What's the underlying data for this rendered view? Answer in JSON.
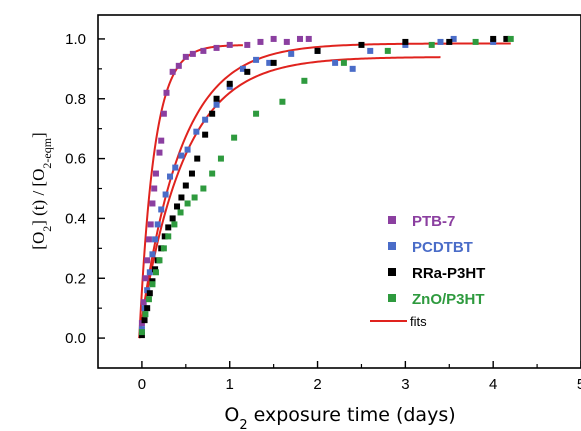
{
  "chart_data": {
    "type": "scatter",
    "xlabel": {
      "pre": "O",
      "sub": "2",
      "post": " exposure time (days)"
    },
    "ylabel": {
      "p1": "[O",
      "s1": "2",
      "p2": "] (t) / [O",
      "s2": "2-eqm",
      "p3": "]"
    },
    "xlim": [
      -0.5,
      5
    ],
    "ylim": [
      -0.1,
      1.08
    ],
    "xticks": [
      0,
      1,
      2,
      3,
      4,
      5
    ],
    "yticks": [
      0.0,
      0.2,
      0.4,
      0.6,
      0.8,
      1.0
    ],
    "xtick_labels": [
      "0",
      "1",
      "2",
      "3",
      "4",
      "5"
    ],
    "ytick_labels": [
      "0.0",
      "0.2",
      "0.4",
      "0.6",
      "0.8",
      "1.0"
    ],
    "grid": false,
    "legend_position": "center-right",
    "series": [
      {
        "name": "PTB-7",
        "color": "#8B3FA0",
        "points": [
          [
            0.0,
            0.05
          ],
          [
            0.02,
            0.12
          ],
          [
            0.04,
            0.2
          ],
          [
            0.06,
            0.26
          ],
          [
            0.08,
            0.33
          ],
          [
            0.1,
            0.38
          ],
          [
            0.12,
            0.45
          ],
          [
            0.14,
            0.5
          ],
          [
            0.16,
            0.55
          ],
          [
            0.2,
            0.62
          ],
          [
            0.22,
            0.66
          ],
          [
            0.25,
            0.75
          ],
          [
            0.28,
            0.82
          ],
          [
            0.35,
            0.89
          ],
          [
            0.42,
            0.91
          ],
          [
            0.5,
            0.94
          ],
          [
            0.58,
            0.95
          ],
          [
            0.7,
            0.96
          ],
          [
            0.85,
            0.97
          ],
          [
            1.0,
            0.98
          ],
          [
            1.2,
            0.98
          ],
          [
            1.35,
            0.99
          ],
          [
            1.5,
            1.0
          ],
          [
            1.65,
            0.99
          ],
          [
            1.8,
            1.0
          ],
          [
            1.9,
            1.0
          ]
        ]
      },
      {
        "name": "PCDTBT",
        "color": "#4A6CC8",
        "points": [
          [
            0.0,
            0.03
          ],
          [
            0.03,
            0.1
          ],
          [
            0.06,
            0.16
          ],
          [
            0.09,
            0.22
          ],
          [
            0.12,
            0.28
          ],
          [
            0.15,
            0.33
          ],
          [
            0.18,
            0.38
          ],
          [
            0.22,
            0.43
          ],
          [
            0.27,
            0.48
          ],
          [
            0.32,
            0.54
          ],
          [
            0.38,
            0.57
          ],
          [
            0.45,
            0.61
          ],
          [
            0.52,
            0.63
          ],
          [
            0.62,
            0.69
          ],
          [
            0.72,
            0.73
          ],
          [
            0.85,
            0.78
          ],
          [
            1.0,
            0.84
          ],
          [
            1.15,
            0.9
          ],
          [
            1.3,
            0.93
          ],
          [
            1.45,
            0.92
          ],
          [
            1.7,
            0.95
          ],
          [
            2.0,
            0.96
          ],
          [
            2.2,
            0.92
          ],
          [
            2.4,
            0.9
          ],
          [
            2.6,
            0.96
          ],
          [
            3.0,
            0.98
          ],
          [
            3.4,
            0.99
          ],
          [
            3.55,
            1.0
          ],
          [
            4.0,
            0.99
          ]
        ]
      },
      {
        "name": "RRa-P3HT",
        "color": "#000000",
        "points": [
          [
            0.0,
            0.01
          ],
          [
            0.03,
            0.06
          ],
          [
            0.06,
            0.1
          ],
          [
            0.09,
            0.15
          ],
          [
            0.12,
            0.19
          ],
          [
            0.15,
            0.23
          ],
          [
            0.18,
            0.26
          ],
          [
            0.22,
            0.3
          ],
          [
            0.26,
            0.34
          ],
          [
            0.3,
            0.37
          ],
          [
            0.35,
            0.4
          ],
          [
            0.4,
            0.44
          ],
          [
            0.45,
            0.47
          ],
          [
            0.5,
            0.51
          ],
          [
            0.57,
            0.55
          ],
          [
            0.63,
            0.6
          ],
          [
            0.72,
            0.68
          ],
          [
            0.8,
            0.75
          ],
          [
            0.85,
            0.8
          ],
          [
            1.0,
            0.85
          ],
          [
            1.2,
            0.89
          ],
          [
            1.5,
            0.92
          ],
          [
            2.0,
            0.96
          ],
          [
            2.5,
            0.98
          ],
          [
            3.0,
            0.99
          ],
          [
            3.5,
            0.99
          ],
          [
            4.0,
            1.0
          ],
          [
            4.15,
            1.0
          ]
        ]
      },
      {
        "name": "ZnO/P3HT",
        "color": "#2E9A3E",
        "points": [
          [
            0.0,
            0.02
          ],
          [
            0.04,
            0.08
          ],
          [
            0.08,
            0.13
          ],
          [
            0.12,
            0.18
          ],
          [
            0.16,
            0.22
          ],
          [
            0.2,
            0.26
          ],
          [
            0.25,
            0.3
          ],
          [
            0.3,
            0.34
          ],
          [
            0.37,
            0.38
          ],
          [
            0.44,
            0.42
          ],
          [
            0.52,
            0.45
          ],
          [
            0.6,
            0.47
          ],
          [
            0.7,
            0.5
          ],
          [
            0.8,
            0.55
          ],
          [
            0.9,
            0.6
          ],
          [
            1.05,
            0.67
          ],
          [
            1.3,
            0.75
          ],
          [
            1.6,
            0.79
          ],
          [
            1.85,
            0.86
          ],
          [
            2.3,
            0.92
          ],
          [
            2.8,
            0.96
          ],
          [
            3.3,
            0.98
          ],
          [
            3.8,
            0.99
          ],
          [
            4.2,
            1.0
          ]
        ]
      }
    ],
    "fits": [
      {
        "name": "fits",
        "color": "#E0231E",
        "plateau": 0.98,
        "tau": 0.17,
        "x0": -0.03,
        "x_end": 1.15
      },
      {
        "name": "fits",
        "color": "#E0231E",
        "plateau": 0.985,
        "tau": 0.46,
        "x0": -0.03,
        "x_end": 4.2
      },
      {
        "name": "fits",
        "color": "#E0231E",
        "plateau": 0.94,
        "tau": 0.5,
        "x0": -0.03,
        "x_end": 3.4
      }
    ],
    "legend": [
      {
        "label": "PTB-7",
        "color": "#8B3FA0",
        "marker": "square"
      },
      {
        "label": "PCDTBT",
        "color": "#4A6CC8",
        "marker": "square"
      },
      {
        "label": "RRa-P3HT",
        "color": "#000000",
        "marker": "square"
      },
      {
        "label": "ZnO/P3HT",
        "color": "#2E9A3E",
        "marker": "square"
      },
      {
        "label": "fits",
        "color": "#E0231E",
        "marker": "line"
      }
    ]
  }
}
